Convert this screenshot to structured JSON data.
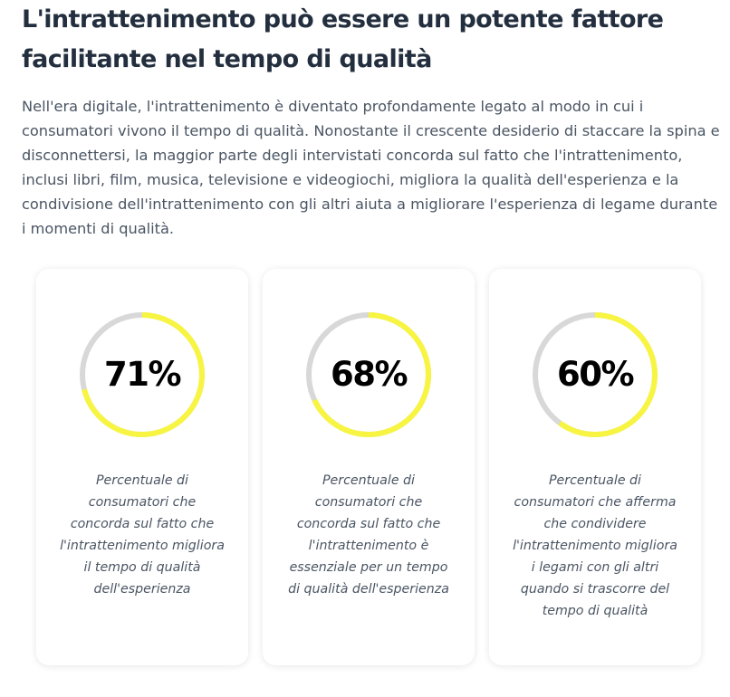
{
  "section": {
    "title": "L'intrattenimento può essere un potente fattore facilitante nel tempo di qualità",
    "intro": "Nell'era digitale, l'intrattenimento è diventato profondamente legato al modo in cui i consumatori vivono il tempo di qualità. Nonostante il crescente desiderio di staccare la spina e disconnettersi, la maggior parte degli intervistati concorda sul fatto che l'intrattenimento, inclusi libri, film, musica, televisione e videogiochi, migliora la qualità dell'esperienza e la condivisione dell'intrattenimento con gli altri aiuta a migliorare l'esperienza di legame durante i momenti di qualità."
  },
  "colors": {
    "ring_fill": "#f7f542",
    "ring_track": "#d8d8d8"
  },
  "stats": [
    {
      "value": "71%",
      "fraction": 0.71,
      "caption": "Percentuale di consumatori che concorda sul fatto che l'intrattenimento migliora il tempo di qualità dell'esperienza"
    },
    {
      "value": "68%",
      "fraction": 0.68,
      "caption": "Percentuale di consumatori che concorda sul fatto che l'intrattenimento è essenziale per un tempo di qualità dell'esperienza"
    },
    {
      "value": "60%",
      "fraction": 0.6,
      "caption": "Percentuale di consumatori che afferma che condividere l'intrattenimento migliora i legami con gli altri quando si trascorre del tempo di qualità"
    }
  ]
}
